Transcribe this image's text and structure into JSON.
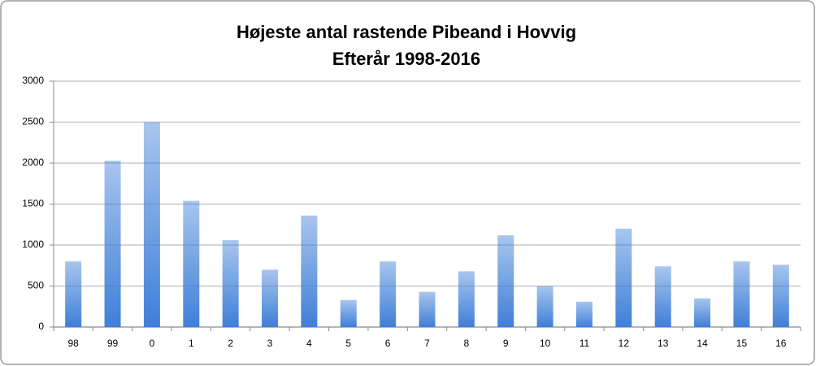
{
  "chart_data": {
    "type": "bar",
    "title": "Højeste antal rastende Pibeand i Hovvig",
    "subtitle": "Efterår 1998-2016",
    "categories": [
      "98",
      "99",
      "0",
      "1",
      "2",
      "3",
      "4",
      "5",
      "6",
      "7",
      "8",
      "9",
      "10",
      "11",
      "12",
      "13",
      "14",
      "15",
      "16"
    ],
    "values": [
      800,
      2030,
      2500,
      1540,
      1060,
      700,
      1360,
      330,
      800,
      430,
      680,
      1120,
      500,
      310,
      1200,
      740,
      350,
      800,
      760
    ],
    "color": "#3f7fd8",
    "ylim": [
      0,
      3000
    ],
    "yticks": [
      0,
      500,
      1000,
      1500,
      2000,
      2500,
      3000
    ],
    "grid": true
  }
}
